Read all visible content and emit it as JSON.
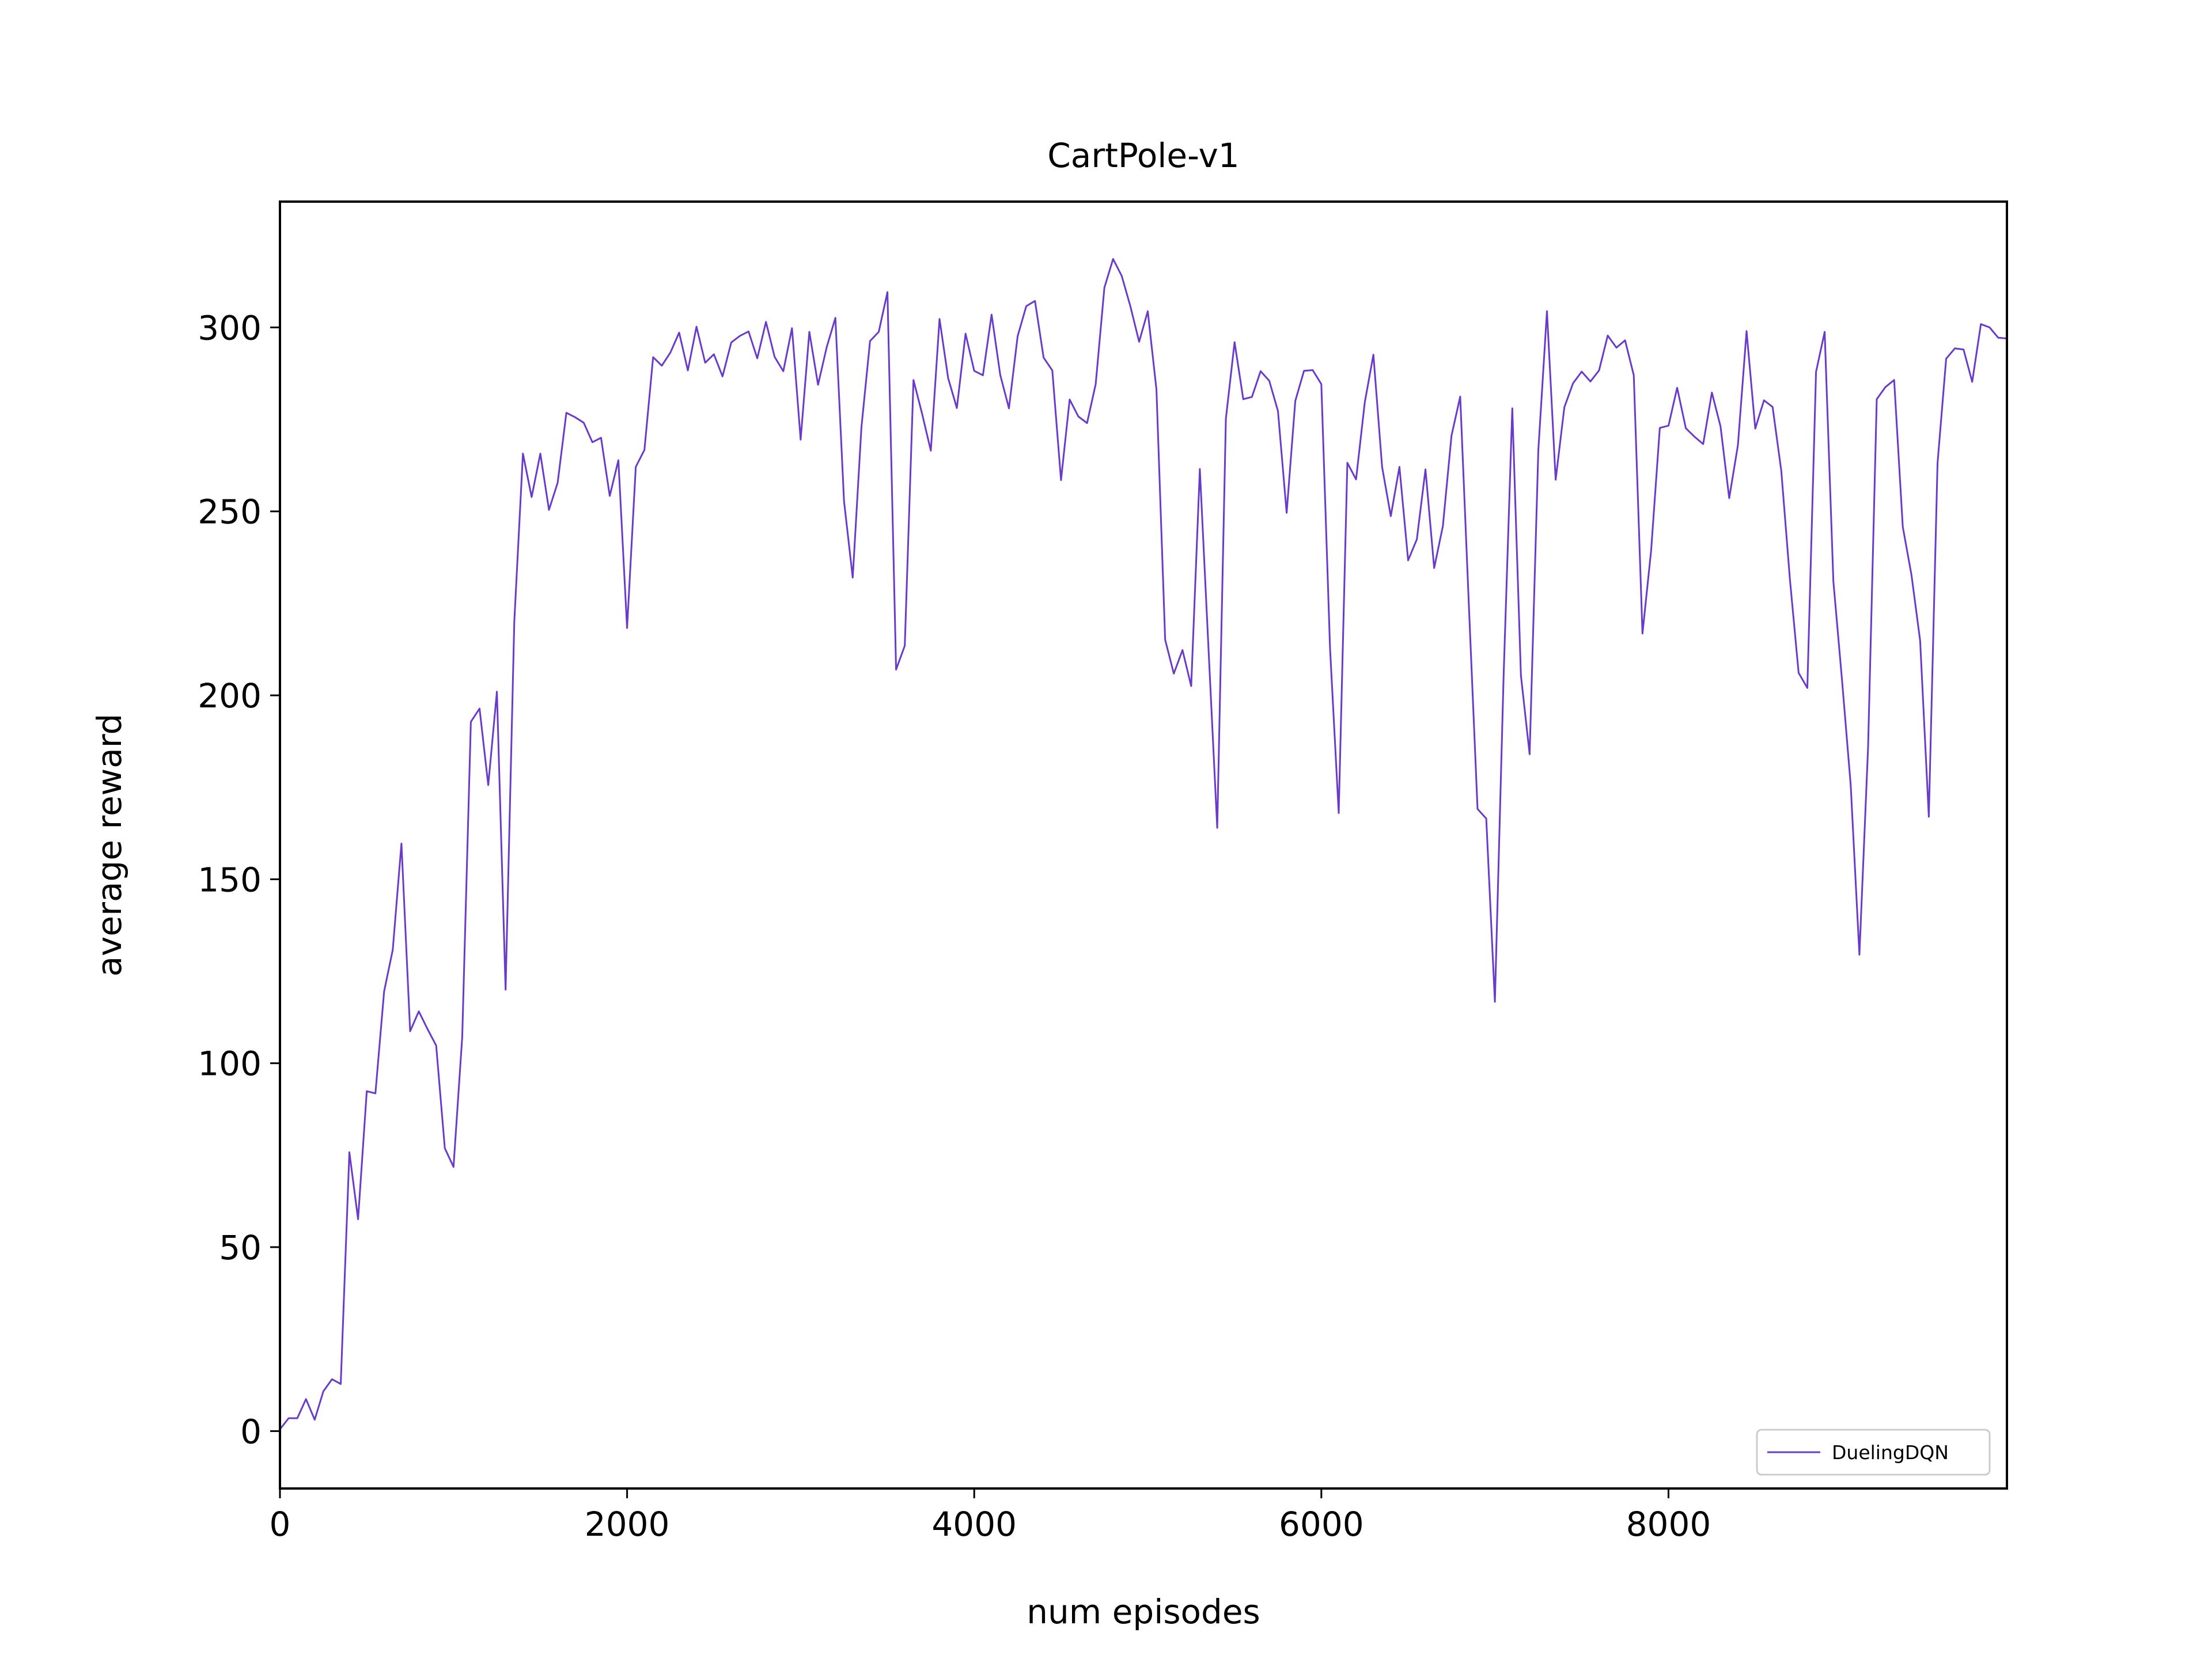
{
  "chart_data": {
    "type": "line",
    "title": "CartPole-v1",
    "xlabel": "num episodes",
    "ylabel": "average reward",
    "xlim": [
      0,
      9950
    ],
    "ylim": [
      -15.6,
      334.2
    ],
    "xticks": [
      0,
      2000,
      4000,
      6000,
      8000
    ],
    "xtick_labels": [
      "0",
      "2000",
      "4000",
      "6000",
      "8000"
    ],
    "yticks": [
      0,
      50,
      100,
      150,
      200,
      250,
      300
    ],
    "ytick_labels": [
      "0",
      "50",
      "100",
      "150",
      "200",
      "250",
      "300"
    ],
    "grid": false,
    "legend_position": "lower-right",
    "series": [
      {
        "name": "DuelingDQN",
        "color": "#6a3bc9",
        "x_start": 0,
        "x_step": 50,
        "values": [
          0.5,
          3.5,
          3.5,
          8.7,
          3.1,
          10.8,
          14.1,
          12.8,
          75.8,
          57.6,
          92.4,
          91.8,
          119.5,
          130.8,
          159.7,
          108.7,
          114.1,
          109.3,
          104.8,
          76.9,
          71.8,
          107.1,
          192.8,
          196.4,
          175.6,
          201.0,
          120.0,
          220.0,
          265.7,
          253.9,
          265.7,
          250.4,
          257.8,
          276.8,
          275.6,
          274.1,
          268.8,
          270.0,
          254.2,
          263.9,
          218.3,
          262.1,
          266.7,
          291.9,
          289.6,
          293.2,
          298.6,
          288.3,
          300.2,
          290.4,
          292.7,
          286.7,
          295.9,
          297.7,
          298.9,
          291.6,
          301.5,
          292.0,
          288.1,
          299.8,
          269.5,
          298.8,
          284.4,
          294.6,
          302.6,
          252.8,
          232.0,
          272.8,
          296.3,
          298.8,
          309.6,
          207.0,
          213.5,
          285.7,
          276.5,
          266.5,
          302.3,
          286.2,
          278.1,
          298.3,
          288.2,
          287.0,
          303.5,
          287.1,
          278.0,
          297.6,
          305.8,
          307.2,
          291.8,
          288.3,
          258.5,
          280.4,
          275.8,
          274.0,
          284.6,
          310.8,
          318.6,
          314.0,
          305.7,
          296.1,
          304.4,
          283.1,
          215.1,
          205.9,
          212.3,
          202.5,
          261.5,
          212.5,
          164.0,
          275.2,
          296.0,
          280.5,
          281.1,
          288.1,
          285.5,
          277.3,
          249.6,
          280.0,
          288.2,
          288.4,
          284.6,
          212.9,
          168.0,
          263.2,
          258.7,
          279.6,
          292.6,
          262.1,
          248.7,
          262.1,
          236.7,
          242.4,
          261.4,
          234.6,
          246.0,
          270.6,
          281.2,
          224.6,
          169.1,
          166.5,
          116.7,
          205.0,
          278.0,
          205.4,
          184.0,
          266.6,
          304.4,
          258.6,
          278.3,
          284.8,
          288.0,
          285.3,
          288.3,
          297.8,
          294.5,
          296.5,
          287.0,
          216.8,
          239.3,
          272.7,
          273.3,
          283.6,
          272.6,
          270.3,
          268.3,
          282.3,
          273.1,
          253.6,
          268.0,
          299.0,
          272.5,
          280.2,
          278.4,
          261.0,
          231.3,
          206.1,
          202.0,
          287.9,
          298.8,
          231.0,
          204.0,
          175.6,
          129.5,
          186.0,
          280.5,
          283.8,
          285.7,
          245.8,
          232.7,
          214.9,
          167.0,
          263.0,
          291.5,
          294.3,
          294.0,
          285.2,
          300.9,
          300.0,
          297.2,
          297.0
        ]
      }
    ]
  }
}
